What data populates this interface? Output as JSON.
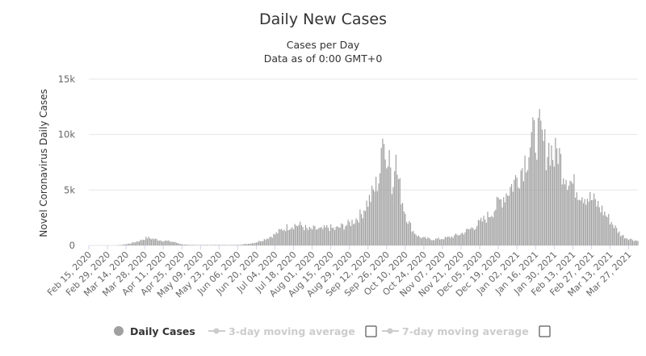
{
  "chart_data": {
    "type": "bar",
    "title": "Daily New Cases",
    "subtitle_line1": "Cases per Day",
    "subtitle_line2": "Data as of 0:00 GMT+0",
    "ylabel": "Novel Coronavirus Daily Cases",
    "ylim": [
      0,
      15000
    ],
    "yticks": [
      {
        "value": 0,
        "label": "0"
      },
      {
        "value": 5000,
        "label": "5k"
      },
      {
        "value": 10000,
        "label": "10k"
      },
      {
        "value": 15000,
        "label": "15k"
      }
    ],
    "xlim_days": [
      0,
      413
    ],
    "xticks": [
      {
        "day": 0,
        "label": "Feb 15, 2020"
      },
      {
        "day": 14,
        "label": "Feb 29, 2020"
      },
      {
        "day": 28,
        "label": "Mar 14, 2020"
      },
      {
        "day": 42,
        "label": "Mar 28, 2020"
      },
      {
        "day": 56,
        "label": "Apr 11, 2020"
      },
      {
        "day": 70,
        "label": "Apr 25, 2020"
      },
      {
        "day": 84,
        "label": "May 09, 2020"
      },
      {
        "day": 98,
        "label": "May 23, 2020"
      },
      {
        "day": 112,
        "label": "Jun 06, 2020"
      },
      {
        "day": 126,
        "label": "Jun 20, 2020"
      },
      {
        "day": 140,
        "label": "Jul 04, 2020"
      },
      {
        "day": 154,
        "label": "Jul 18, 2020"
      },
      {
        "day": 168,
        "label": "Aug 01, 2020"
      },
      {
        "day": 182,
        "label": "Aug 15, 2020"
      },
      {
        "day": 196,
        "label": "Aug 29, 2020"
      },
      {
        "day": 210,
        "label": "Sep 12, 2020"
      },
      {
        "day": 224,
        "label": "Sep 26, 2020"
      },
      {
        "day": 238,
        "label": "Oct 10, 2020"
      },
      {
        "day": 252,
        "label": "Oct 24, 2020"
      },
      {
        "day": 266,
        "label": "Nov 07, 2020"
      },
      {
        "day": 280,
        "label": "Nov 21, 2020"
      },
      {
        "day": 294,
        "label": "Dec 05, 2020"
      },
      {
        "day": 308,
        "label": "Dec 19, 2020"
      },
      {
        "day": 322,
        "label": "Jan 02, 2021"
      },
      {
        "day": 336,
        "label": "Jan 16, 2021"
      },
      {
        "day": 350,
        "label": "Jan 30, 2021"
      },
      {
        "day": 364,
        "label": "Feb 13, 2021"
      },
      {
        "day": 378,
        "label": "Feb 27, 2021"
      },
      {
        "day": 392,
        "label": "Mar 13, 2021"
      },
      {
        "day": 406,
        "label": "Mar 27, 2021"
      }
    ],
    "series": [
      {
        "name": "Daily Cases",
        "color": "#a0a0a0",
        "keyframes": [
          [
            0,
            0
          ],
          [
            20,
            0
          ],
          [
            25,
            50
          ],
          [
            30,
            150
          ],
          [
            35,
            300
          ],
          [
            40,
            500
          ],
          [
            44,
            700
          ],
          [
            48,
            600
          ],
          [
            55,
            450
          ],
          [
            62,
            350
          ],
          [
            66,
            250
          ],
          [
            70,
            100
          ],
          [
            75,
            40
          ],
          [
            110,
            40
          ],
          [
            115,
            80
          ],
          [
            120,
            150
          ],
          [
            125,
            250
          ],
          [
            130,
            450
          ],
          [
            135,
            700
          ],
          [
            140,
            1000
          ],
          [
            145,
            1400
          ],
          [
            150,
            1700
          ],
          [
            155,
            1850
          ],
          [
            160,
            1800
          ],
          [
            165,
            1400
          ],
          [
            170,
            1500
          ],
          [
            175,
            1400
          ],
          [
            180,
            1650
          ],
          [
            185,
            1450
          ],
          [
            190,
            1700
          ],
          [
            195,
            1900
          ],
          [
            200,
            2300
          ],
          [
            205,
            2800
          ],
          [
            208,
            3600
          ],
          [
            212,
            4300
          ],
          [
            215,
            5100
          ],
          [
            218,
            6000
          ],
          [
            220,
            7500
          ],
          [
            222,
            11200
          ],
          [
            224,
            7000
          ],
          [
            226,
            9000
          ],
          [
            228,
            5000
          ],
          [
            230,
            8300
          ],
          [
            232,
            6500
          ],
          [
            235,
            4500
          ],
          [
            238,
            3000
          ],
          [
            241,
            2000
          ],
          [
            244,
            1300
          ],
          [
            248,
            800
          ],
          [
            252,
            650
          ],
          [
            258,
            550
          ],
          [
            265,
            600
          ],
          [
            270,
            700
          ],
          [
            275,
            850
          ],
          [
            280,
            1050
          ],
          [
            285,
            1350
          ],
          [
            290,
            1700
          ],
          [
            295,
            2100
          ],
          [
            300,
            2600
          ],
          [
            305,
            3300
          ],
          [
            310,
            4100
          ],
          [
            315,
            4900
          ],
          [
            320,
            5700
          ],
          [
            325,
            6800
          ],
          [
            330,
            8300
          ],
          [
            333,
            9500
          ],
          [
            336,
            9800
          ],
          [
            339,
            10100
          ],
          [
            341,
            9400
          ],
          [
            344,
            8600
          ],
          [
            347,
            8900
          ],
          [
            350,
            7800
          ],
          [
            353,
            8700
          ],
          [
            356,
            7000
          ],
          [
            360,
            6200
          ],
          [
            364,
            5500
          ],
          [
            368,
            5000
          ],
          [
            372,
            4600
          ],
          [
            376,
            4300
          ],
          [
            380,
            4000
          ],
          [
            384,
            3500
          ],
          [
            388,
            2900
          ],
          [
            392,
            2300
          ],
          [
            396,
            1600
          ],
          [
            400,
            1000
          ],
          [
            404,
            700
          ],
          [
            408,
            550
          ],
          [
            413,
            400
          ]
        ]
      }
    ],
    "legend": [
      {
        "label": "Daily Cases",
        "active": true
      },
      {
        "label": "3-day moving average",
        "active": false
      },
      {
        "label": "7-day moving average",
        "active": false
      }
    ],
    "grid": true,
    "legend_position": "bottom"
  }
}
